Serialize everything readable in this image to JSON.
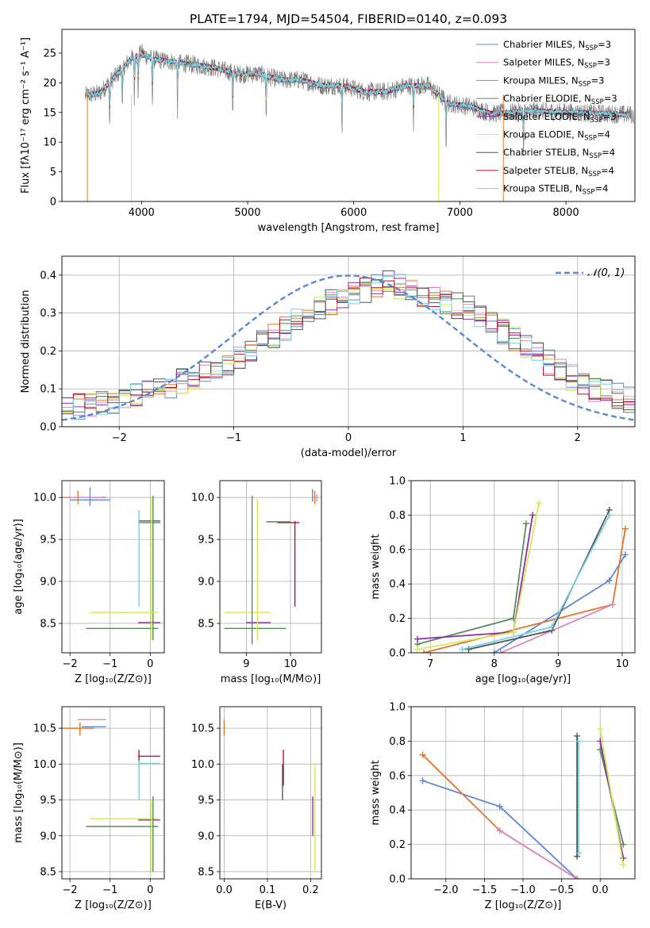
{
  "colors": [
    "#5b87d6",
    "#dd84c4",
    "#e2762d",
    "#5b8a5b",
    "#8a2ea8",
    "#d4e85a",
    "#555555",
    "#b3122a",
    "#74d1df"
  ],
  "chart_data": [
    {
      "type": "line",
      "title": "PLATE=1794, MJD=54504, FIBERID=0140, z=0.093",
      "xlabel": "wavelength [Angstrom, rest frame]",
      "ylabel": "Flux [fλ10⁻¹⁷ erg cm⁻² s⁻¹ A⁻¹]",
      "xlim": [
        3250,
        8650
      ],
      "ylim": [
        0,
        29
      ],
      "xticks": [
        "4000",
        "5000",
        "6000",
        "7000",
        "8000"
      ],
      "xtick_values": [
        4000,
        5000,
        6000,
        7000,
        8000
      ],
      "yticks": [
        "0",
        "5",
        "10",
        "15",
        "20",
        "25"
      ],
      "ytick_values": [
        0,
        5,
        10,
        15,
        20,
        25
      ],
      "legend_position": "top-right",
      "legend": [
        "Chabrier MILES, N_SSP=3",
        "Salpeter MILES, N_SSP=3",
        "Kroupa MILES, N_SSP=3",
        "Chabrier ELODIE, N_SSP=3",
        "Salpeter ELODIE, N_SSP=3",
        "Kroupa ELODIE, N_SSP=4",
        "Chabrier STELIB, N_SSP=4",
        "Salpeter STELIB, N_SSP=4",
        "Kroupa STELIB, N_SSP=4"
      ],
      "legend_parts": [
        {
          "main": "Chabrier MILES, N",
          "sub": "SSP",
          "tail": "=3"
        },
        {
          "main": "Salpeter MILES, N",
          "sub": "SSP",
          "tail": "=3"
        },
        {
          "main": "Kroupa MILES, N",
          "sub": "SSP",
          "tail": "=3"
        },
        {
          "main": "Chabrier ELODIE, N",
          "sub": "SSP",
          "tail": "=3"
        },
        {
          "main": "Salpeter ELODIE, N",
          "sub": "SSP",
          "tail": "=3"
        },
        {
          "main": "Kroupa ELODIE, N",
          "sub": "SSP",
          "tail": "=4"
        },
        {
          "main": "Chabrier STELIB, N",
          "sub": "SSP",
          "tail": "=4"
        },
        {
          "main": "Salpeter STELIB, N",
          "sub": "SSP",
          "tail": "=4"
        },
        {
          "main": "Kroupa STELIB, N",
          "sub": "SSP",
          "tail": "=4"
        }
      ],
      "continuum": {
        "x": [
          3450,
          3600,
          3750,
          3900,
          4000,
          4100,
          4300,
          4500,
          4700,
          4900,
          5100,
          5300,
          5500,
          5700,
          5900,
          6100,
          6300,
          6500,
          6700,
          6900,
          7100,
          7300,
          7500,
          7700,
          7900,
          8100,
          8300,
          8500,
          8650
        ],
        "y": [
          17.8,
          18.2,
          21.0,
          24.0,
          25.0,
          24.0,
          23.5,
          23.0,
          22.5,
          21.5,
          21.5,
          20.5,
          20.5,
          19.5,
          19.5,
          18.5,
          18.5,
          19.5,
          19.5,
          16.5,
          16.0,
          14.8,
          15.0,
          15.3,
          15.1,
          15.0,
          14.8,
          14.7,
          14.6
        ]
      },
      "absorption_lines": [
        3700,
        3820,
        3933,
        3968,
        4102,
        4340,
        4861,
        5175,
        5890,
        6563,
        6870,
        7600
      ],
      "notes": "Lines show models Chabrier/Salpeter/Kroupa x MILES/ELODIE/STELIB overlaid on observed spectrum (gray)."
    },
    {
      "type": "histogram",
      "xlabel": "(data-model)/error",
      "ylabel": "Normed distribution",
      "xlim": [
        -2.5,
        2.5
      ],
      "ylim": [
        0,
        0.45
      ],
      "xticks": [
        "−2",
        "−1",
        "0",
        "1",
        "2"
      ],
      "xtick_values": [
        -2,
        -1,
        0,
        1,
        2
      ],
      "yticks": [
        "0.0",
        "0.1",
        "0.2",
        "0.3",
        "0.4"
      ],
      "ytick_values": [
        0,
        0.1,
        0.2,
        0.3,
        0.4
      ],
      "reference_legend": "𝒩(0, 1)",
      "reference": "normal pdf, mean 0, sigma 1, dashed",
      "bins_start": -2.5,
      "bin_width": 0.1,
      "base_values": [
        0.05,
        0.055,
        0.06,
        0.065,
        0.07,
        0.075,
        0.08,
        0.09,
        0.1,
        0.11,
        0.12,
        0.13,
        0.14,
        0.15,
        0.165,
        0.18,
        0.2,
        0.22,
        0.24,
        0.26,
        0.28,
        0.3,
        0.31,
        0.33,
        0.34,
        0.35,
        0.36,
        0.37,
        0.38,
        0.37,
        0.36,
        0.35,
        0.34,
        0.33,
        0.32,
        0.31,
        0.29,
        0.27,
        0.25,
        0.23,
        0.21,
        0.19,
        0.17,
        0.15,
        0.13,
        0.12,
        0.1,
        0.09,
        0.08,
        0.07
      ]
    },
    {
      "type": "errorbar",
      "xlabel": "Z [log₁₀(Z/Z⊙)]",
      "ylabel": "age  [log₁₀(age/yr)]",
      "xlim": [
        -2.2,
        0.35
      ],
      "ylim": [
        8.15,
        10.2
      ],
      "xticks": [
        "−2",
        "−1",
        "0"
      ],
      "xtick_values": [
        -2,
        -1,
        0
      ],
      "yticks": [
        "8.5",
        "9.0",
        "9.5",
        "10.0"
      ],
      "ytick_values": [
        8.5,
        9.0,
        9.5,
        10.0
      ],
      "segments": [
        {
          "c": 0,
          "x": [
            -2.0,
            -1.0
          ],
          "y": 9.97
        },
        {
          "c": 0,
          "x": -1.5,
          "y": [
            9.9,
            10.12
          ]
        },
        {
          "c": 2,
          "x": [
            -2.2,
            -1.1
          ],
          "y": 10.0
        },
        {
          "c": 2,
          "x": -1.8,
          "y": [
            9.92,
            10.08
          ]
        },
        {
          "c": 1,
          "x": [
            -2.0,
            -1.2
          ],
          "y": 10.0
        },
        {
          "c": 3,
          "x": [
            -0.3,
            0.25
          ],
          "y": 9.7
        },
        {
          "c": 6,
          "x": [
            -0.3,
            0.25
          ],
          "y": 9.72
        },
        {
          "c": 8,
          "x": -0.28,
          "y": [
            8.7,
            9.85
          ]
        },
        {
          "c": 3,
          "x": 0.07,
          "y": [
            8.3,
            10.02
          ]
        },
        {
          "c": 5,
          "x": [
            -1.5,
            0.2
          ],
          "y": 8.63
        },
        {
          "c": 3,
          "x": [
            -1.6,
            0.2
          ],
          "y": 8.44
        },
        {
          "c": 4,
          "x": [
            -0.3,
            0.25
          ],
          "y": 8.51
        },
        {
          "c": 5,
          "x": 0.03,
          "y": [
            8.3,
            10.0
          ]
        }
      ]
    },
    {
      "type": "errorbar",
      "xlabel": "mass [log₁₀(M/M⊙)]",
      "ylabel": "",
      "xlim": [
        8.4,
        10.7
      ],
      "ylim": [
        8.15,
        10.2
      ],
      "xticks": [
        "9",
        "10"
      ],
      "xtick_values": [
        9,
        10
      ],
      "yticks": [
        "8.5",
        "9.0",
        "9.5",
        "10.0"
      ],
      "ytick_values": [
        8.5,
        9.0,
        9.5,
        10.0
      ],
      "segments": [
        {
          "c": 2,
          "x": 10.55,
          "y": [
            9.92,
            10.08
          ]
        },
        {
          "c": 0,
          "x": 10.5,
          "y": [
            9.95,
            10.1
          ]
        },
        {
          "c": 1,
          "x": 10.6,
          "y": [
            9.95,
            10.04
          ]
        },
        {
          "c": 7,
          "x": 10.1,
          "y": [
            8.7,
            9.72
          ]
        },
        {
          "c": 7,
          "x": [
            9.7,
            10.2
          ],
          "y": 9.7
        },
        {
          "c": 3,
          "x": [
            9.45,
            10.0
          ],
          "y": 9.71
        },
        {
          "c": 5,
          "x": [
            8.5,
            9.55
          ],
          "y": 8.63
        },
        {
          "c": 3,
          "x": [
            8.5,
            9.9
          ],
          "y": 8.44
        },
        {
          "c": 4,
          "x": [
            9.0,
            9.55
          ],
          "y": 8.51
        },
        {
          "c": 3,
          "x": 9.13,
          "y": [
            8.25,
            10.02
          ]
        },
        {
          "c": 5,
          "x": 9.25,
          "y": [
            8.3,
            9.98
          ]
        }
      ]
    },
    {
      "type": "line",
      "xlabel": "age  [log₁₀(age/yr)]",
      "ylabel": "mass weight",
      "xlim": [
        6.7,
        10.2
      ],
      "ylim": [
        0,
        1.0
      ],
      "xticks": [
        "7",
        "8",
        "9",
        "10"
      ],
      "xtick_values": [
        7,
        8,
        9,
        10
      ],
      "yticks": [
        "0.0",
        "0.2",
        "0.4",
        "0.6",
        "0.8",
        "1.0"
      ],
      "ytick_values": [
        0,
        0.2,
        0.4,
        0.6,
        0.8,
        1.0
      ],
      "series": [
        {
          "c": 0,
          "x": [
            8.0,
            9.8,
            10.05
          ],
          "y": [
            0.0,
            0.42,
            0.57
          ]
        },
        {
          "c": 2,
          "x": [
            6.9,
            9.85,
            10.05
          ],
          "y": [
            0.0,
            0.28,
            0.72
          ]
        },
        {
          "c": 1,
          "x": [
            8.1,
            9.85
          ],
          "y": [
            0.0,
            0.28
          ]
        },
        {
          "c": 3,
          "x": [
            6.8,
            8.3,
            8.5
          ],
          "y": [
            0.05,
            0.2,
            0.75
          ]
        },
        {
          "c": 4,
          "x": [
            6.8,
            8.3,
            8.6
          ],
          "y": [
            0.08,
            0.12,
            0.8
          ]
        },
        {
          "c": 5,
          "x": [
            6.8,
            8.3,
            8.7
          ],
          "y": [
            0.02,
            0.12,
            0.87
          ]
        },
        {
          "c": 6,
          "x": [
            7.6,
            8.9,
            9.8
          ],
          "y": [
            0.02,
            0.13,
            0.83
          ]
        },
        {
          "c": 8,
          "x": [
            7.5,
            8.9,
            9.8
          ],
          "y": [
            0.02,
            0.15,
            0.8
          ]
        }
      ]
    },
    {
      "type": "errorbar",
      "xlabel": "Z [log₁₀(Z/Z⊙)]",
      "ylabel": "mass [log₁₀(M/M⊙)]",
      "xlim": [
        -2.2,
        0.35
      ],
      "ylim": [
        8.4,
        10.8
      ],
      "xticks": [
        "−2",
        "−1",
        "0"
      ],
      "xtick_values": [
        -2,
        -1,
        0
      ],
      "yticks": [
        "8.5",
        "9.0",
        "9.5",
        "10.0",
        "10.5"
      ],
      "ytick_values": [
        8.5,
        9.0,
        9.5,
        10.0,
        10.5
      ],
      "segments": [
        {
          "c": 1,
          "x": [
            -1.8,
            -1.1
          ],
          "y": 10.62
        },
        {
          "c": 0,
          "x": [
            -1.7,
            -1.1
          ],
          "y": 10.52
        },
        {
          "c": 2,
          "x": [
            -2.2,
            -1.4
          ],
          "y": 10.5
        },
        {
          "c": 2,
          "x": -1.75,
          "y": [
            10.4,
            10.58
          ]
        },
        {
          "c": 7,
          "x": [
            -0.3,
            0.25
          ],
          "y": 10.11
        },
        {
          "c": 7,
          "x": -0.28,
          "y": [
            10.0,
            10.2
          ]
        },
        {
          "c": 8,
          "x": [
            -0.3,
            0.25
          ],
          "y": 10.01
        },
        {
          "c": 8,
          "x": -0.28,
          "y": [
            9.5,
            10.05
          ]
        },
        {
          "c": 5,
          "x": [
            -1.5,
            0.2
          ],
          "y": 9.24
        },
        {
          "c": 4,
          "x": [
            -0.3,
            0.25
          ],
          "y": 9.22
        },
        {
          "c": 3,
          "x": [
            -1.6,
            0.2
          ],
          "y": 9.13
        },
        {
          "c": 3,
          "x": 0.07,
          "y": [
            8.5,
            9.55
          ]
        },
        {
          "c": 5,
          "x": 0.03,
          "y": [
            8.5,
            9.5
          ]
        }
      ]
    },
    {
      "type": "errorbar",
      "xlabel": "E(B-V)",
      "ylabel": "",
      "xlim": [
        -0.01,
        0.225
      ],
      "ylim": [
        8.4,
        10.8
      ],
      "xticks": [
        "0.0",
        "0.1",
        "0.2"
      ],
      "xtick_values": [
        0,
        0.1,
        0.2
      ],
      "yticks": [
        "8.5",
        "9.0",
        "9.5",
        "10.0",
        "10.5"
      ],
      "ytick_values": [
        8.5,
        9.0,
        9.5,
        10.0,
        10.5
      ],
      "segments": [
        {
          "c": 2,
          "x": 0.0,
          "y": [
            10.4,
            10.62
          ]
        },
        {
          "c": 7,
          "x": 0.137,
          "y": [
            9.7,
            10.2
          ]
        },
        {
          "c": 6,
          "x": 0.135,
          "y": [
            9.5,
            10.0
          ]
        },
        {
          "c": 4,
          "x": 0.205,
          "y": [
            9.0,
            9.55
          ]
        },
        {
          "c": 5,
          "x": 0.21,
          "y": [
            8.5,
            10.0
          ]
        }
      ]
    },
    {
      "type": "line",
      "xlabel": "Z [log₁₀(Z/Z⊙)]",
      "ylabel": "mass weight",
      "xlim": [
        -2.45,
        0.45
      ],
      "ylim": [
        0,
        1.0
      ],
      "xticks": [
        "−2.0",
        "−1.5",
        "−1.0",
        "−0.5",
        "0.0"
      ],
      "xtick_values": [
        -2.0,
        -1.5,
        -1.0,
        -0.5,
        0.0
      ],
      "yticks": [
        "0.0",
        "0.2",
        "0.4",
        "0.6",
        "0.8",
        "1.0"
      ],
      "ytick_values": [
        0,
        0.2,
        0.4,
        0.6,
        0.8,
        1.0
      ],
      "series": [
        {
          "c": 0,
          "x": [
            -2.3,
            -1.3,
            -0.3
          ],
          "y": [
            0.57,
            0.42,
            0.0
          ]
        },
        {
          "c": 2,
          "x": [
            -2.3,
            -1.3,
            -0.3
          ],
          "y": [
            0.72,
            0.28,
            0.0
          ]
        },
        {
          "c": 1,
          "x": [
            -1.3,
            -0.3
          ],
          "y": [
            0.28,
            0.0
          ]
        },
        {
          "c": 6,
          "x": [
            -0.3,
            -0.3
          ],
          "y": [
            0.83,
            0.13
          ]
        },
        {
          "c": 8,
          "x": [
            -0.28,
            -0.28
          ],
          "y": [
            0.8,
            0.15
          ]
        },
        {
          "c": 3,
          "x": [
            0.0,
            0.3
          ],
          "y": [
            0.75,
            0.2
          ]
        },
        {
          "c": 4,
          "x": [
            0.0,
            0.3
          ],
          "y": [
            0.8,
            0.12
          ]
        },
        {
          "c": 5,
          "x": [
            0.0,
            0.3
          ],
          "y": [
            0.87,
            0.08
          ]
        }
      ]
    }
  ]
}
